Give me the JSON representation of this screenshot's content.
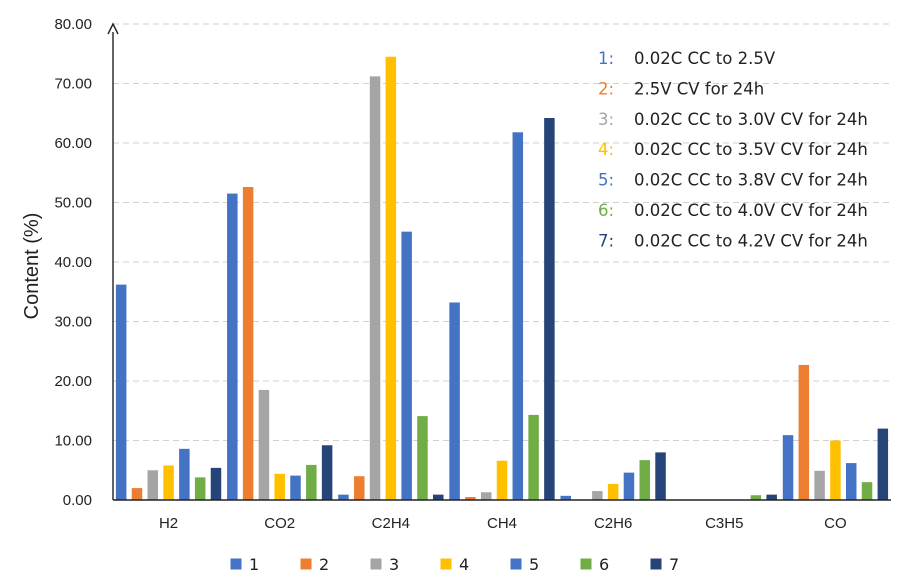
{
  "chart_data": {
    "type": "bar",
    "title": "",
    "xlabel": "",
    "ylabel": "Content (%)",
    "ylim": [
      0,
      80
    ],
    "y_ticks": [
      "0.00",
      "10.00",
      "20.00",
      "30.00",
      "40.00",
      "50.00",
      "60.00",
      "70.00",
      "80.00"
    ],
    "grid": "horizontal dashed",
    "legend_position": "bottom",
    "categories": [
      "H2",
      "CO2",
      "C2H4",
      "CH4",
      "C2H6",
      "C3H5",
      "CO"
    ],
    "series": [
      {
        "name": "1",
        "color": "#4472C4",
        "values": [
          36.2,
          51.5,
          0.9,
          33.2,
          0.7,
          0.0,
          10.9
        ]
      },
      {
        "name": "2",
        "color": "#ED7D31",
        "values": [
          2.0,
          52.6,
          4.0,
          0.5,
          0.0,
          0.0,
          22.7
        ]
      },
      {
        "name": "3",
        "color": "#A5A5A5",
        "values": [
          5.0,
          18.5,
          71.2,
          1.3,
          1.5,
          0.0,
          4.9
        ]
      },
      {
        "name": "4",
        "color": "#FFC000",
        "values": [
          5.8,
          4.4,
          74.5,
          6.6,
          2.7,
          0.0,
          10.0
        ]
      },
      {
        "name": "5",
        "color": "#4472C4",
        "values": [
          8.6,
          4.1,
          45.1,
          61.8,
          4.6,
          0.0,
          6.2
        ]
      },
      {
        "name": "6",
        "color": "#70AD47",
        "values": [
          3.8,
          5.9,
          14.1,
          14.3,
          6.7,
          0.8,
          3.0
        ]
      },
      {
        "name": "7",
        "color": "#264478",
        "values": [
          5.4,
          9.2,
          0.9,
          64.2,
          8.0,
          0.9,
          12.0
        ]
      }
    ],
    "annotations": [
      {
        "num": "1:",
        "text": "0.02C CC to 2.5V",
        "color": "#4472C4"
      },
      {
        "num": "2:",
        "text": "2.5V CV for 24h",
        "color": "#ED7D31"
      },
      {
        "num": "3:",
        "text": "0.02C CC to 3.0V CV for 24h",
        "color": "#A5A5A5"
      },
      {
        "num": "4:",
        "text": "0.02C CC to 3.5V CV for 24h",
        "color": "#FFC000"
      },
      {
        "num": "5:",
        "text": "0.02C CC to 3.8V CV for 24h",
        "color": "#4472C4"
      },
      {
        "num": "6:",
        "text": "0.02C CC to 4.0V CV for 24h",
        "color": "#70AD47"
      },
      {
        "num": "7:",
        "text": "0.02C CC to 4.2V CV for 24h",
        "color": "#264478"
      }
    ]
  }
}
